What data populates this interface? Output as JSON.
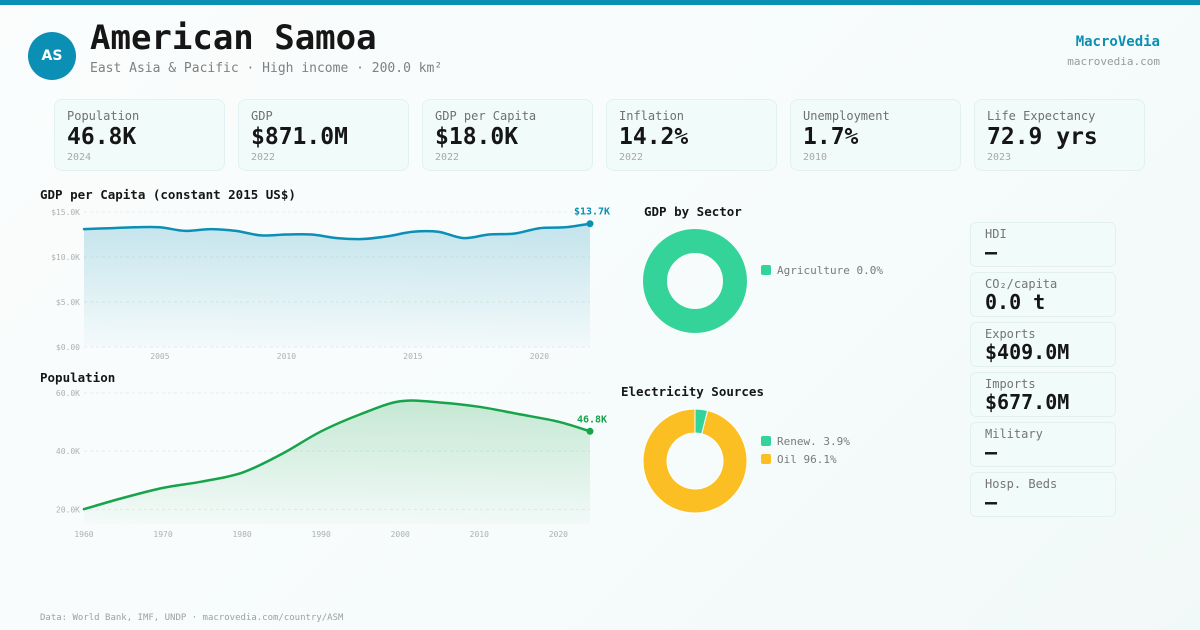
{
  "header": {
    "avatar_initials": "AS",
    "title": "American Samoa",
    "subtitle": "East Asia & Pacific · High income · 200.0 km²",
    "brand": "MacroVedia",
    "brand_url": "macrovedia.com"
  },
  "colors": {
    "accent": "#0b8fb4",
    "population_line": "#16a34a",
    "agriculture": "#34d399",
    "renewables": "#34d399",
    "oil": "#fbbf24"
  },
  "kpis": [
    {
      "label": "Population",
      "value": "46.8K",
      "year": "2024"
    },
    {
      "label": "GDP",
      "value": "$871.0M",
      "year": "2022"
    },
    {
      "label": "GDP per Capita",
      "value": "$18.0K",
      "year": "2022"
    },
    {
      "label": "Inflation",
      "value": "14.2%",
      "year": "2022"
    },
    {
      "label": "Unemployment",
      "value": "1.7%",
      "year": "2010"
    },
    {
      "label": "Life Expectancy",
      "value": "72.9 yrs",
      "year": "2023"
    }
  ],
  "side_cards": [
    {
      "label": "HDI",
      "value": "—"
    },
    {
      "label": "CO₂/capita",
      "value": "0.0 t"
    },
    {
      "label": "Exports",
      "value": "$409.0M"
    },
    {
      "label": "Imports",
      "value": "$677.0M"
    },
    {
      "label": "Military",
      "value": "—"
    },
    {
      "label": "Hosp. Beds",
      "value": "—"
    }
  ],
  "footer": "Data: World Bank, IMF, UNDP · macrovedia.com/country/ASM",
  "chart_data": [
    {
      "id": "gdp_per_capita",
      "type": "area",
      "title": "GDP per Capita (constant 2015 US$)",
      "xlabel": "",
      "ylabel": "",
      "x": [
        2002,
        2003,
        2004,
        2005,
        2006,
        2007,
        2008,
        2009,
        2010,
        2011,
        2012,
        2013,
        2014,
        2015,
        2016,
        2017,
        2018,
        2019,
        2020,
        2021,
        2022
      ],
      "values": [
        13100,
        13200,
        13300,
        13300,
        12900,
        13100,
        12900,
        12400,
        12500,
        12500,
        12100,
        12000,
        12300,
        12800,
        12800,
        12100,
        12500,
        12600,
        13200,
        13300,
        13700
      ],
      "ylim": [
        0,
        15000
      ],
      "xlim": [
        2002,
        2022
      ],
      "yticks": [
        0,
        5000,
        10000,
        15000
      ],
      "ytick_labels": [
        "$0.00",
        "$5.0K",
        "$10.0K",
        "$15.0K"
      ],
      "xticks": [
        2005,
        2010,
        2015,
        2020
      ],
      "xtick_labels": [
        "2005",
        "2010",
        "2015",
        "2020"
      ],
      "end_label": "$13.7K",
      "grid": true,
      "color": "#0b8fb4"
    },
    {
      "id": "population",
      "type": "area",
      "title": "Population",
      "xlabel": "",
      "ylabel": "",
      "x": [
        1960,
        1965,
        1970,
        1975,
        1980,
        1985,
        1990,
        1995,
        2000,
        2005,
        2010,
        2015,
        2020,
        2024
      ],
      "values": [
        20100,
        24000,
        27400,
        29600,
        32600,
        39000,
        46800,
        52700,
        57100,
        56700,
        55200,
        52700,
        50100,
        46800
      ],
      "ylim": [
        15000,
        62000
      ],
      "xlim": [
        1960,
        2024
      ],
      "yticks": [
        20000,
        40000,
        60000
      ],
      "ytick_labels": [
        "20.0K",
        "40.0K",
        "60.0K"
      ],
      "xticks": [
        1960,
        1970,
        1980,
        1990,
        2000,
        2010,
        2020
      ],
      "xtick_labels": [
        "1960",
        "1970",
        "1980",
        "1990",
        "2000",
        "2010",
        "2020"
      ],
      "end_label": "46.8K",
      "grid": true,
      "color": "#16a34a"
    },
    {
      "id": "gdp_by_sector",
      "type": "pie",
      "title": "GDP by Sector",
      "donut": true,
      "slices": [
        {
          "label": "Agriculture",
          "value": 0.0,
          "display": "Agriculture 0.0%",
          "color": "#34d399"
        }
      ],
      "legend": "right"
    },
    {
      "id": "electricity_sources",
      "type": "pie",
      "title": "Electricity Sources",
      "donut": true,
      "slices": [
        {
          "label": "Renew.",
          "value": 3.9,
          "display": "Renew. 3.9%",
          "color": "#34d399"
        },
        {
          "label": "Oil",
          "value": 96.1,
          "display": "Oil 96.1%",
          "color": "#fbbf24"
        }
      ],
      "legend": "right"
    }
  ]
}
